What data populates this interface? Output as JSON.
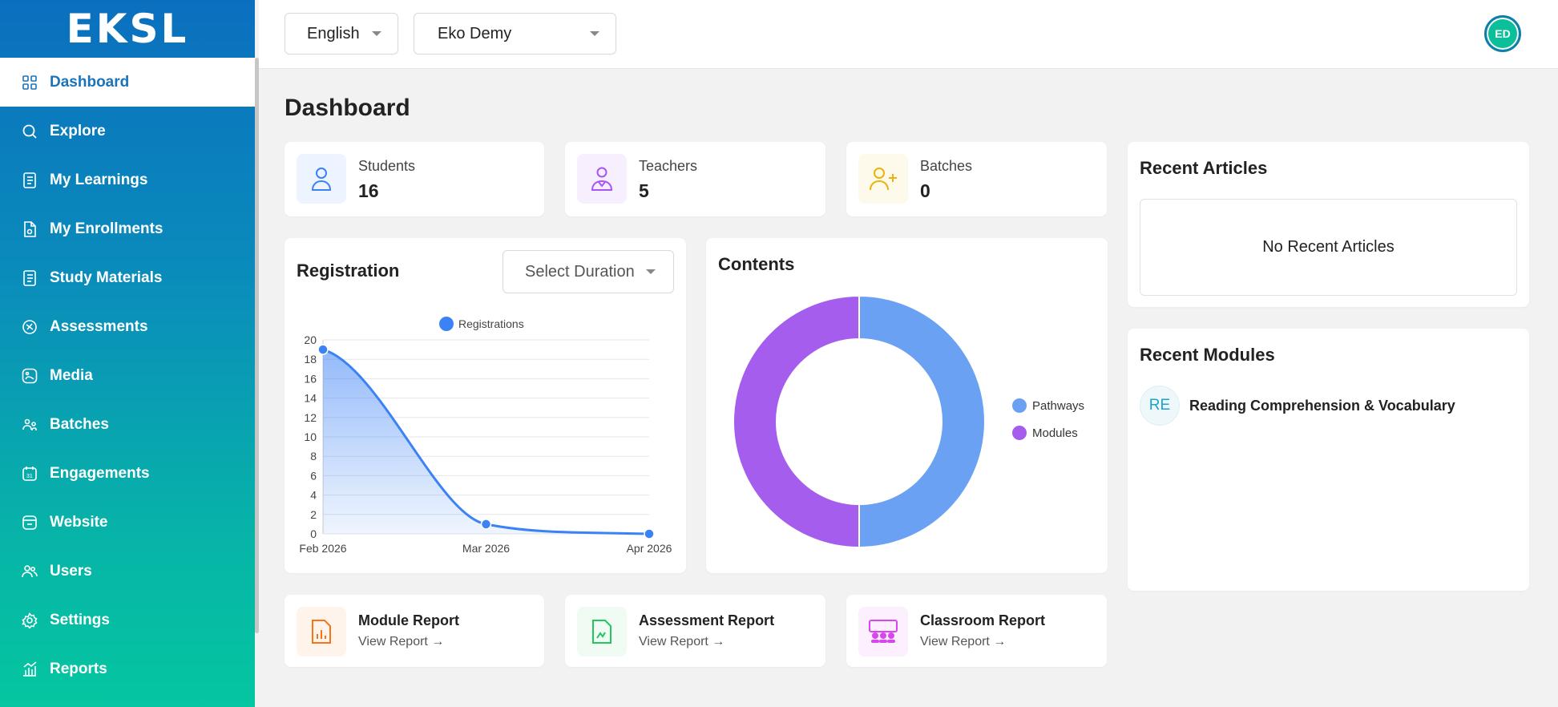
{
  "brand": {
    "logo_text": "EKSL"
  },
  "sidebar": {
    "items": [
      {
        "label": "Dashboard",
        "icon": "grid-icon",
        "active": true
      },
      {
        "label": "Explore",
        "icon": "search-icon"
      },
      {
        "label": "My Learnings",
        "icon": "book-icon"
      },
      {
        "label": "My Enrollments",
        "icon": "document-icon"
      },
      {
        "label": "Study Materials",
        "icon": "book-icon"
      },
      {
        "label": "Assessments",
        "icon": "assessment-icon"
      },
      {
        "label": "Media",
        "icon": "media-icon"
      },
      {
        "label": "Batches",
        "icon": "batch-icon"
      },
      {
        "label": "Engagements",
        "icon": "calendar-icon"
      },
      {
        "label": "Website",
        "icon": "website-icon"
      },
      {
        "label": "Users",
        "icon": "users-icon"
      },
      {
        "label": "Settings",
        "icon": "gear-icon"
      },
      {
        "label": "Reports",
        "icon": "chart-icon"
      }
    ]
  },
  "topbar": {
    "language": "English",
    "organization": "Eko Demy",
    "avatar_initials": "ED"
  },
  "page": {
    "title": "Dashboard"
  },
  "stats": [
    {
      "label": "Students",
      "value": "16",
      "icon": "user-icon",
      "color": "#3b82f6",
      "bg": "#eef4ff"
    },
    {
      "label": "Teachers",
      "value": "5",
      "icon": "teacher-icon",
      "color": "#a855f7",
      "bg": "#f7effe"
    },
    {
      "label": "Batches",
      "value": "0",
      "icon": "user-plus-icon",
      "color": "#eab308",
      "bg": "#fefaeb"
    }
  ],
  "registration": {
    "title": "Registration",
    "duration_placeholder": "Select Duration"
  },
  "chart_data": [
    {
      "type": "area",
      "title": "",
      "legend": "top-center",
      "series": [
        {
          "name": "Registrations",
          "values": [
            19,
            1,
            0
          ],
          "color": "#3b82f6"
        }
      ],
      "categories": [
        "Feb 2026",
        "Mar 2026",
        "Apr 2026"
      ],
      "ylim": [
        0,
        20
      ],
      "yticks": [
        0,
        2,
        4,
        6,
        8,
        10,
        12,
        14,
        16,
        18,
        20
      ],
      "grid": true
    },
    {
      "type": "pie",
      "title": "Contents",
      "legend": "right",
      "labels": [
        "Pathways",
        "Modules"
      ],
      "values": [
        50,
        50
      ],
      "colors": [
        "#6aa1f3",
        "#a55ded"
      ]
    }
  ],
  "recent_articles": {
    "title": "Recent Articles",
    "empty_text": "No Recent Articles"
  },
  "recent_modules": {
    "title": "Recent Modules",
    "items": [
      {
        "badge": "RE",
        "name": "Reading Comprehension & Vocabulary"
      }
    ]
  },
  "reports": [
    {
      "title": "Module Report",
      "link": "View Report →",
      "icon": "bar-chart-icon",
      "color": "#f97316",
      "bg": "#fff4ec"
    },
    {
      "title": "Assessment Report",
      "link": "View Report →",
      "icon": "file-chart-icon",
      "color": "#22c55e",
      "bg": "#effbf3"
    },
    {
      "title": "Classroom Report",
      "link": "View Report →",
      "icon": "classroom-icon",
      "color": "#d946ef",
      "bg": "#fcf0fe"
    }
  ]
}
